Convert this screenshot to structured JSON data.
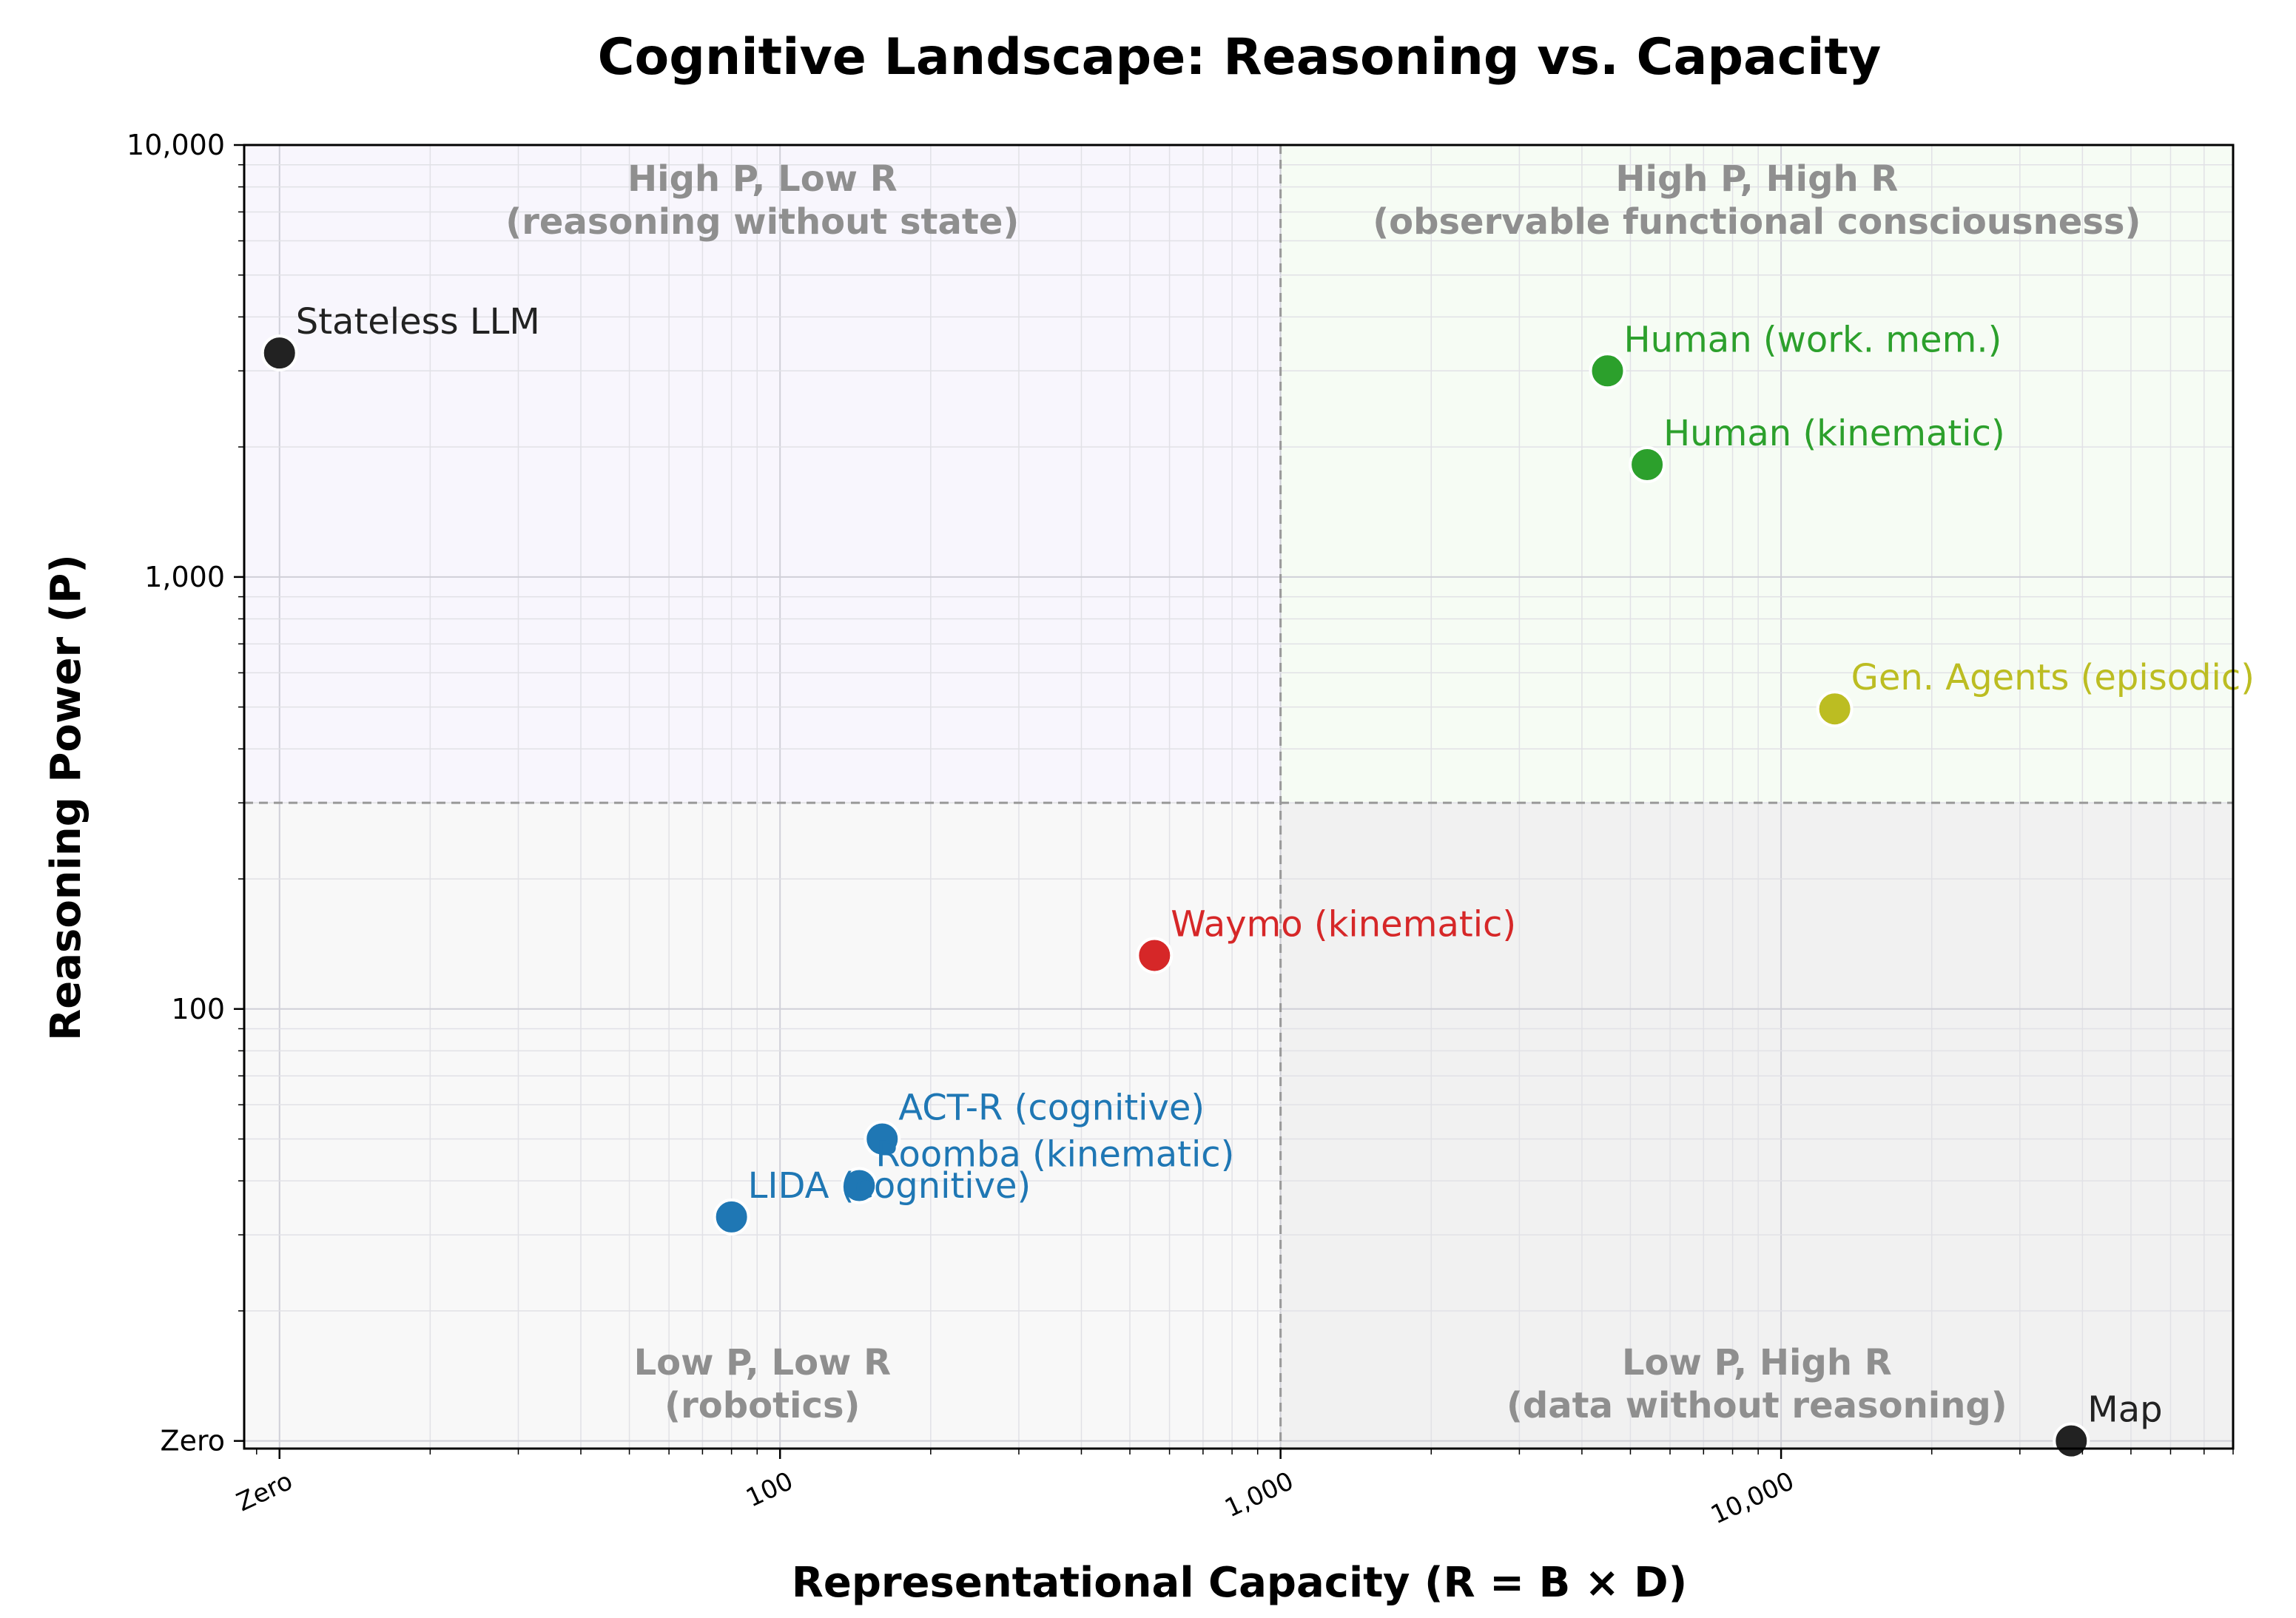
{
  "chart_data": {
    "type": "scatter",
    "title": "Cognitive Landscape: Reasoning vs. Capacity",
    "xlabel": "Representational Capacity (R = B × D)",
    "ylabel": "Reasoning Power (P)",
    "x_scale": "log",
    "y_scale": "log",
    "xlim": [
      8.5,
      80000
    ],
    "ylim": [
      9.6,
      10000
    ],
    "x_ticks": [
      {
        "value": 10,
        "label": "Zero"
      },
      {
        "value": 100,
        "label": "100"
      },
      {
        "value": 1000,
        "label": "1,000"
      },
      {
        "value": 10000,
        "label": "10,000"
      }
    ],
    "y_ticks": [
      {
        "value": 10,
        "label": "Zero"
      },
      {
        "value": 100,
        "label": "100"
      },
      {
        "value": 1000,
        "label": "1,000"
      },
      {
        "value": 10000,
        "label": "10,000"
      }
    ],
    "thresholds": {
      "x": 1000,
      "y": 300
    },
    "quadrants": [
      {
        "id": "top-left",
        "line1": "High P, Low R",
        "line2": "(reasoning without state)",
        "color": "#f8f6fd"
      },
      {
        "id": "top-right",
        "line1": "High P, High R",
        "line2": "(observable functional consciousness)",
        "color": "#f6fcf4"
      },
      {
        "id": "bottom-left",
        "line1": "Low P, Low R",
        "line2": "(robotics)",
        "color": "#f8f8f8"
      },
      {
        "id": "bottom-right",
        "line1": "Low P, High R",
        "line2": "(data without reasoning)",
        "color": "#f1f1f1"
      }
    ],
    "points": [
      {
        "label": "Stateless LLM",
        "x": 10,
        "y": 3300,
        "color": "#222222"
      },
      {
        "label": "Human (work. mem.)",
        "x": 4500,
        "y": 3000,
        "color": "#2ca02c"
      },
      {
        "label": "Human (kinematic)",
        "x": 5400,
        "y": 1820,
        "color": "#2ca02c"
      },
      {
        "label": "Gen. Agents (episodic)",
        "x": 12800,
        "y": 495,
        "color": "#bcbd22"
      },
      {
        "label": "Waymo (kinematic)",
        "x": 560,
        "y": 133,
        "color": "#d62728"
      },
      {
        "label": "ACT-R (cognitive)",
        "x": 160,
        "y": 50,
        "color": "#1f77b4"
      },
      {
        "label": "Roomba (kinematic)",
        "x": 144,
        "y": 39,
        "color": "#1f77b4"
      },
      {
        "label": "LIDA (cognitive)",
        "x": 80,
        "y": 33,
        "color": "#1f77b4"
      },
      {
        "label": "Map",
        "x": 38000,
        "y": 10,
        "color": "#222222"
      }
    ]
  }
}
